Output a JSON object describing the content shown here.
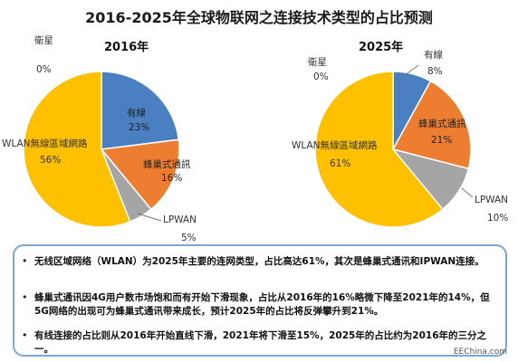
{
  "title": "2016-2025年全球物联网之连接技术类型的占比预测",
  "chart_data": [
    {
      "type": "pie",
      "title": "2016年",
      "slices": [
        {
          "label": "有線",
          "value": 23,
          "value_text": "23%",
          "color": "#4a7fc1"
        },
        {
          "label": "蜂巢式通訊",
          "value": 16,
          "value_text": "16%",
          "color": "#ed7d31"
        },
        {
          "label": "LPWAN",
          "value": 5,
          "value_text": "5%",
          "color": "#a5a5a5"
        },
        {
          "label": "WLAN無線區域網路",
          "value": 56,
          "value_text": "56%",
          "color": "#ffc000"
        },
        {
          "label": "衛星",
          "value": 0,
          "value_text": "0%",
          "color": "#5b9bd5"
        }
      ]
    },
    {
      "type": "pie",
      "title": "2025年",
      "slices": [
        {
          "label": "有線",
          "value": 8,
          "value_text": "8%",
          "color": "#4a7fc1"
        },
        {
          "label": "蜂巢式通訊",
          "value": 21,
          "value_text": "21%",
          "color": "#ed7d31"
        },
        {
          "label": "LPWAN",
          "value": 10,
          "value_text": "10%",
          "color": "#a5a5a5"
        },
        {
          "label": "WLAN無線區域網路",
          "value": 61,
          "value_text": "61%",
          "color": "#ffc000"
        },
        {
          "label": "衛星",
          "value": 0,
          "value_text": "0%",
          "color": "#5b9bd5"
        }
      ]
    }
  ],
  "notes": [
    {
      "bullet": "•",
      "text": "无线区域网络（WLAN）为2025年主要的连网类型，占比高达61%，其次是蜂巢式通讯和IPWAN连接。"
    },
    {
      "bullet": "•",
      "text": "蜂巢式通讯因4G用户数市场饱和而有开始下滑现象，占比从2016年的16%略微下降至2021年的14%，但5G网络的出现可为蜂巢式通讯带来成长，预计2025年的占比将反弹攀升到21%。"
    },
    {
      "bullet": "•",
      "text": "有线连接的占比则从2016年开始直线下滑，2021年将下滑至15%，2025年的占比约为2016年的三分之一。"
    }
  ],
  "watermark": "EEChina.com"
}
